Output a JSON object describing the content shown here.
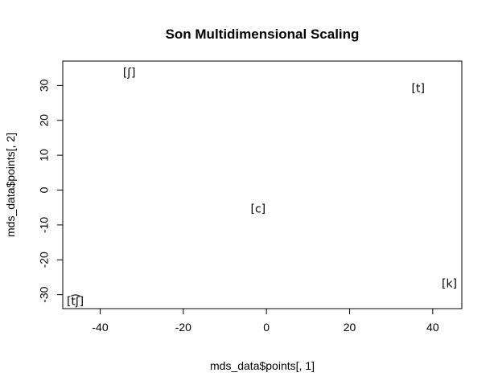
{
  "chart_data": {
    "type": "scatter",
    "title": "Son Multidimensional Scaling",
    "xlabel": "mds_data$points[, 1]",
    "ylabel": "mds_data$points[, 2]",
    "xlim": [
      -49,
      47
    ],
    "ylim": [
      -34,
      37
    ],
    "x_ticks": [
      -40,
      -20,
      0,
      20,
      40
    ],
    "y_ticks": [
      -30,
      -20,
      -10,
      0,
      10,
      20,
      30
    ],
    "grid": false,
    "points": [
      {
        "label": "[ʃ]",
        "x": -33,
        "y": 33.5
      },
      {
        "label": "[t]",
        "x": 36.5,
        "y": 29
      },
      {
        "label": "[c]",
        "x": -2,
        "y": -5.5
      },
      {
        "label": "[k]",
        "x": 44,
        "y": -27
      },
      {
        "label": "[t͡ʃ]",
        "x": -46,
        "y": -32
      }
    ]
  }
}
